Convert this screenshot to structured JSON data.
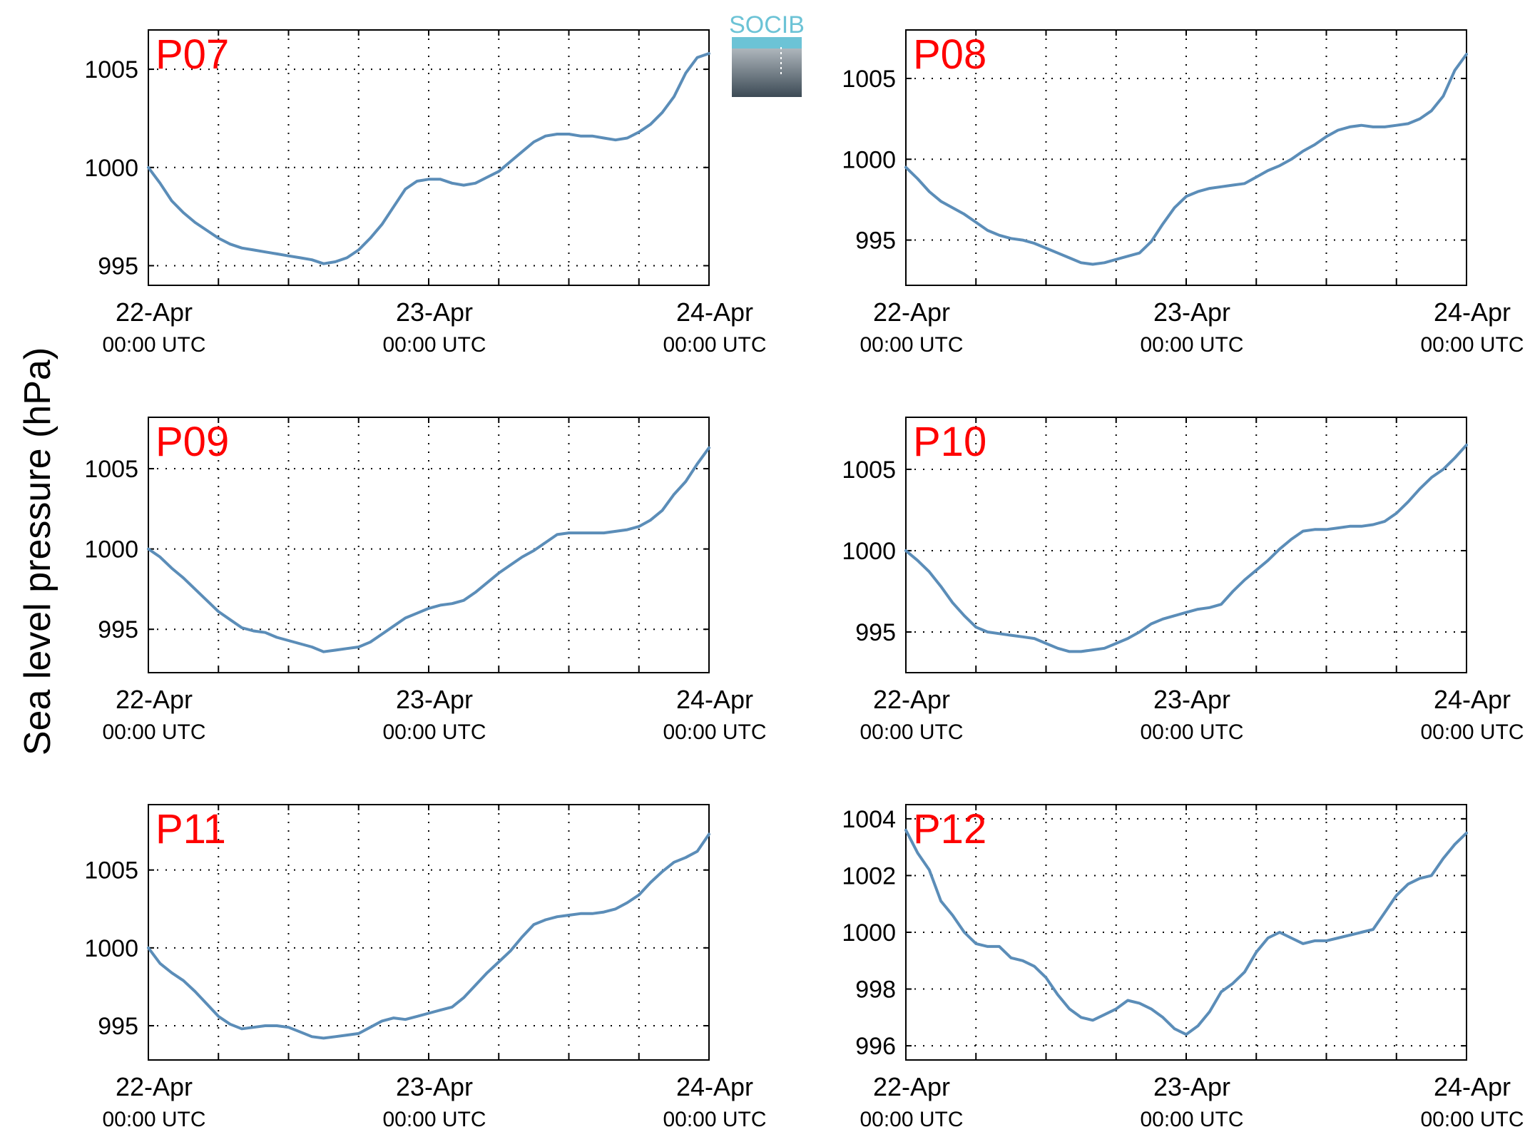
{
  "figure": {
    "ylabel": "Sea level pressure (hPa)",
    "logo_text": "SOCIB",
    "line_color": "#5b8db8",
    "label_color": "#ff0000",
    "x_tick_dates": [
      "22-Apr",
      "23-Apr",
      "24-Apr"
    ],
    "x_tick_times": [
      "00:00 UTC",
      "00:00 UTC",
      "00:00 UTC"
    ]
  },
  "chart_data": [
    {
      "type": "line",
      "title": "P07",
      "x_unit": "hours since 22-Apr 00:00 UTC",
      "xlim": [
        0,
        48
      ],
      "ylim": [
        994,
        1007
      ],
      "yticks": [
        995,
        1000,
        1005
      ],
      "grid": true,
      "x": [
        0,
        1,
        2,
        3,
        4,
        5,
        6,
        7,
        8,
        9,
        10,
        11,
        12,
        13,
        14,
        15,
        16,
        17,
        18,
        19,
        20,
        21,
        22,
        23,
        24,
        25,
        26,
        27,
        28,
        29,
        30,
        31,
        32,
        33,
        34,
        35,
        36,
        37,
        38,
        39,
        40,
        41,
        42,
        43,
        44,
        45,
        46,
        47,
        48
      ],
      "y": [
        1000,
        999.2,
        998.3,
        997.7,
        997.2,
        996.8,
        996.4,
        996.1,
        995.9,
        995.8,
        995.7,
        995.6,
        995.5,
        995.4,
        995.3,
        995.1,
        995.2,
        995.4,
        995.8,
        996.4,
        997.1,
        998,
        998.9,
        999.3,
        999.4,
        999.4,
        999.2,
        999.1,
        999.2,
        999.5,
        999.8,
        1000.3,
        1000.8,
        1001.3,
        1001.6,
        1001.7,
        1001.7,
        1001.6,
        1001.6,
        1001.5,
        1001.4,
        1001.5,
        1001.8,
        1002.2,
        1002.8,
        1003.6,
        1004.8,
        1005.6,
        1005.8
      ]
    },
    {
      "type": "line",
      "title": "P08",
      "x_unit": "hours since 22-Apr 00:00 UTC",
      "xlim": [
        0,
        48
      ],
      "ylim": [
        992.2,
        1008
      ],
      "yticks": [
        995,
        1000,
        1005
      ],
      "grid": true,
      "x": [
        0,
        1,
        2,
        3,
        4,
        5,
        6,
        7,
        8,
        9,
        10,
        11,
        12,
        13,
        14,
        15,
        16,
        17,
        18,
        19,
        20,
        21,
        22,
        23,
        24,
        25,
        26,
        27,
        28,
        29,
        30,
        31,
        32,
        33,
        34,
        35,
        36,
        37,
        38,
        39,
        40,
        41,
        42,
        43,
        44,
        45,
        46,
        47,
        48
      ],
      "y": [
        999.5,
        998.8,
        998,
        997.4,
        997,
        996.6,
        996.1,
        995.6,
        995.3,
        995.1,
        995,
        994.8,
        994.5,
        994.2,
        993.9,
        993.6,
        993.5,
        993.6,
        993.8,
        994,
        994.2,
        994.9,
        996,
        997,
        997.7,
        998,
        998.2,
        998.3,
        998.4,
        998.5,
        998.9,
        999.3,
        999.6,
        1000,
        1000.5,
        1000.9,
        1001.4,
        1001.8,
        1002,
        1002.1,
        1002,
        1002,
        1002.1,
        1002.2,
        1002.5,
        1003,
        1003.9,
        1005.5,
        1006.5
      ]
    },
    {
      "type": "line",
      "title": "P09",
      "x_unit": "hours since 22-Apr 00:00 UTC",
      "xlim": [
        0,
        48
      ],
      "ylim": [
        992.3,
        1008.2
      ],
      "yticks": [
        995,
        1000,
        1005
      ],
      "grid": true,
      "x": [
        0,
        1,
        2,
        3,
        4,
        5,
        6,
        7,
        8,
        9,
        10,
        11,
        12,
        13,
        14,
        15,
        16,
        17,
        18,
        19,
        20,
        21,
        22,
        23,
        24,
        25,
        26,
        27,
        28,
        29,
        30,
        31,
        32,
        33,
        34,
        35,
        36,
        37,
        38,
        39,
        40,
        41,
        42,
        43,
        44,
        45,
        46,
        47,
        48
      ],
      "y": [
        1000,
        999.5,
        998.8,
        998.2,
        997.5,
        996.8,
        996.1,
        995.6,
        995.1,
        994.9,
        994.8,
        994.5,
        994.3,
        994.1,
        993.9,
        993.6,
        993.7,
        993.8,
        993.9,
        994.2,
        994.7,
        995.2,
        995.7,
        996,
        996.3,
        996.5,
        996.6,
        996.8,
        997.3,
        997.9,
        998.5,
        999,
        999.5,
        999.9,
        1000.4,
        1000.9,
        1001,
        1001,
        1001,
        1001,
        1001.1,
        1001.2,
        1001.4,
        1001.8,
        1002.4,
        1003.4,
        1004.2,
        1005.3,
        1006.3
      ]
    },
    {
      "type": "line",
      "title": "P10",
      "x_unit": "hours since 22-Apr 00:00 UTC",
      "xlim": [
        0,
        48
      ],
      "ylim": [
        992.5,
        1008.2
      ],
      "yticks": [
        995,
        1000,
        1005
      ],
      "grid": true,
      "x": [
        0,
        1,
        2,
        3,
        4,
        5,
        6,
        7,
        8,
        9,
        10,
        11,
        12,
        13,
        14,
        15,
        16,
        17,
        18,
        19,
        20,
        21,
        22,
        23,
        24,
        25,
        26,
        27,
        28,
        29,
        30,
        31,
        32,
        33,
        34,
        35,
        36,
        37,
        38,
        39,
        40,
        41,
        42,
        43,
        44,
        45,
        46,
        47,
        48
      ],
      "y": [
        1000,
        999.4,
        998.7,
        997.8,
        996.8,
        996,
        995.3,
        995,
        994.9,
        994.8,
        994.7,
        994.6,
        994.3,
        994,
        993.8,
        993.8,
        993.9,
        994,
        994.3,
        994.6,
        995,
        995.5,
        995.8,
        996,
        996.2,
        996.4,
        996.5,
        996.7,
        997.5,
        998.2,
        998.8,
        999.4,
        1000.1,
        1000.7,
        1001.2,
        1001.3,
        1001.3,
        1001.4,
        1001.5,
        1001.5,
        1001.6,
        1001.8,
        1002.3,
        1003,
        1003.8,
        1004.5,
        1005,
        1005.7,
        1006.5
      ]
    },
    {
      "type": "line",
      "title": "P11",
      "x_unit": "hours since 22-Apr 00:00 UTC",
      "xlim": [
        0,
        48
      ],
      "ylim": [
        992.8,
        1009.2
      ],
      "yticks": [
        995,
        1000,
        1005
      ],
      "grid": true,
      "x": [
        0,
        1,
        2,
        3,
        4,
        5,
        6,
        7,
        8,
        9,
        10,
        11,
        12,
        13,
        14,
        15,
        16,
        17,
        18,
        19,
        20,
        21,
        22,
        23,
        24,
        25,
        26,
        27,
        28,
        29,
        30,
        31,
        32,
        33,
        34,
        35,
        36,
        37,
        38,
        39,
        40,
        41,
        42,
        43,
        44,
        45,
        46,
        47,
        48
      ],
      "y": [
        1000,
        999,
        998.4,
        997.9,
        997.2,
        996.4,
        995.6,
        995.1,
        994.8,
        994.9,
        995,
        995,
        994.9,
        994.6,
        994.3,
        994.2,
        994.3,
        994.4,
        994.5,
        994.9,
        995.3,
        995.5,
        995.4,
        995.6,
        995.8,
        996,
        996.2,
        996.8,
        997.6,
        998.4,
        999.1,
        999.8,
        1000.7,
        1001.5,
        1001.8,
        1002,
        1002.1,
        1002.2,
        1002.2,
        1002.3,
        1002.5,
        1002.9,
        1003.4,
        1004.2,
        1004.9,
        1005.5,
        1005.8,
        1006.2,
        1007.3
      ]
    },
    {
      "type": "line",
      "title": "P12",
      "x_unit": "hours since 22-Apr 00:00 UTC",
      "xlim": [
        0,
        48
      ],
      "ylim": [
        995.5,
        1004.5
      ],
      "yticks": [
        996,
        998,
        1000,
        1002,
        1004
      ],
      "grid": true,
      "x": [
        0,
        1,
        2,
        3,
        4,
        5,
        6,
        7,
        8,
        9,
        10,
        11,
        12,
        13,
        14,
        15,
        16,
        17,
        18,
        19,
        20,
        21,
        22,
        23,
        24,
        25,
        26,
        27,
        28,
        29,
        30,
        31,
        32,
        33,
        34,
        35,
        36,
        37,
        38,
        39,
        40,
        41,
        42,
        43,
        44,
        45,
        46,
        47,
        48
      ],
      "y": [
        1003.6,
        1002.8,
        1002.2,
        1001.1,
        1000.6,
        1000,
        999.6,
        999.5,
        999.5,
        999.1,
        999,
        998.8,
        998.4,
        997.8,
        997.3,
        997,
        996.9,
        997.1,
        997.3,
        997.6,
        997.5,
        997.3,
        997,
        996.6,
        996.4,
        996.7,
        997.2,
        997.9,
        998.2,
        998.6,
        999.3,
        999.8,
        1000,
        999.8,
        999.6,
        999.7,
        999.7,
        999.8,
        999.9,
        1000,
        1000.1,
        1000.7,
        1001.3,
        1001.7,
        1001.9,
        1002,
        1002.6,
        1003.1,
        1003.5
      ]
    }
  ]
}
